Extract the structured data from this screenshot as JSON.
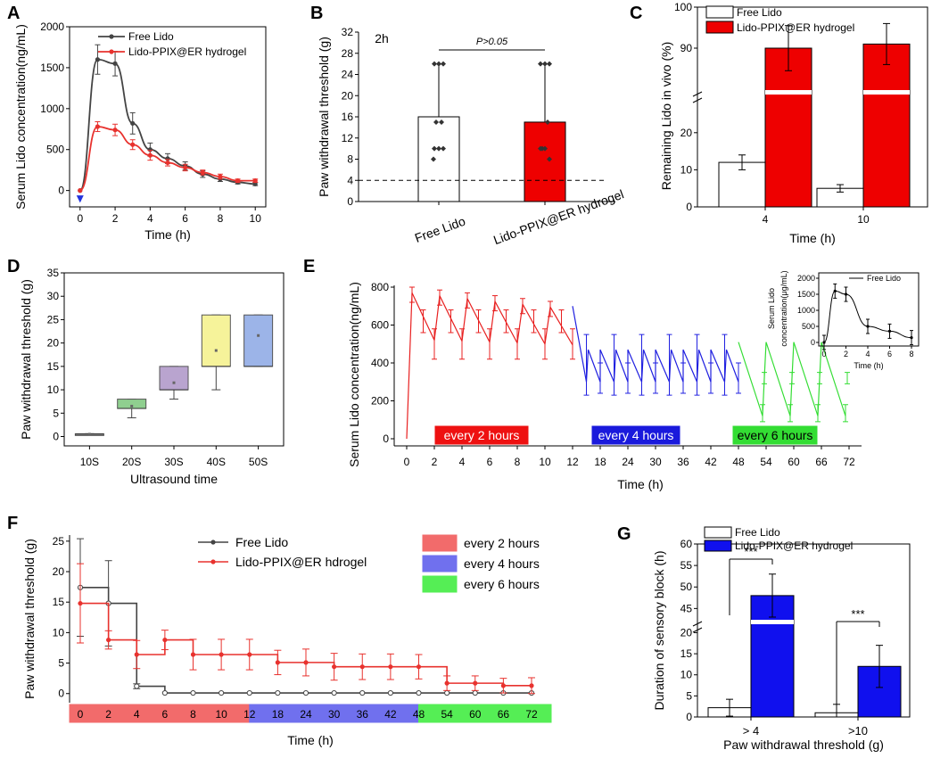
{
  "colors": {
    "red": "#e8322e",
    "blue": "#1a1adc",
    "dark": "#333333",
    "green": "#33dd33",
    "fill_red": "#ee0000",
    "fill_blue": "#1010ee"
  },
  "panels": [
    {
      "letter": "A",
      "type": "line",
      "title": "",
      "xlabel": "Time (h)",
      "ylabel": "Serum Lido concentration(ng/mL)",
      "xlim": [
        -0.6,
        10.6
      ],
      "ylim": [
        -200,
        2000
      ],
      "xticks": [
        0,
        2,
        4,
        6,
        8,
        10
      ],
      "yticks": [
        0,
        500,
        1000,
        1500,
        2000
      ],
      "series": [
        {
          "name": "Free Lido",
          "x": [
            0,
            1,
            2,
            3,
            4,
            5,
            6,
            7,
            8,
            9,
            10
          ],
          "y": [
            0,
            1600,
            1550,
            820,
            500,
            390,
            300,
            200,
            140,
            100,
            80
          ],
          "err": [
            0,
            180,
            150,
            130,
            80,
            60,
            50,
            40,
            30,
            20,
            20
          ],
          "color": "#444444"
        },
        {
          "name": "Lido-PPIX@ER hydrogel",
          "x": [
            0,
            1,
            2,
            3,
            4,
            5,
            6,
            7,
            8,
            9,
            10
          ],
          "y": [
            0,
            780,
            740,
            560,
            430,
            340,
            280,
            220,
            170,
            120,
            120
          ],
          "err": [
            0,
            60,
            70,
            60,
            60,
            40,
            40,
            30,
            30,
            20,
            20
          ],
          "color": "#e8322e"
        }
      ]
    },
    {
      "letter": "B",
      "type": "bar",
      "annotation": "2h",
      "significance": "P>0.05",
      "ylabel": "Paw withdrawal threshold (g)",
      "ylim": [
        0,
        32
      ],
      "yticks": [
        0,
        4,
        8,
        12,
        16,
        20,
        24,
        28,
        32
      ],
      "categories": [
        "Free Lido",
        "Lido-PPIX@ER hydrogel"
      ],
      "values": [
        16,
        15
      ],
      "err_high": [
        26,
        26
      ],
      "threshold": 4,
      "points": [
        [
          26,
          26,
          26,
          15,
          15,
          10,
          10,
          10,
          8
        ],
        [
          26,
          26,
          26,
          15,
          10,
          10,
          10,
          8
        ]
      ]
    },
    {
      "letter": "C",
      "type": "bar",
      "ylabel": "Remaining Lido in vivo (%)",
      "xlabel": "Time (h)",
      "categories": [
        "4",
        "10"
      ],
      "series": [
        {
          "name": "Free Lido",
          "values": [
            12,
            5
          ],
          "err": [
            2,
            1
          ]
        },
        {
          "name": "Lido-PPIX@ER hydrogel",
          "values": [
            90,
            91
          ],
          "err": [
            5.5,
            5
          ]
        }
      ],
      "yticks": [
        "0",
        "10",
        "20",
        "90",
        "100"
      ],
      "axis_break": [
        25,
        80
      ]
    },
    {
      "letter": "D",
      "type": "box",
      "xlabel": "Ultrasound time",
      "ylabel": "Paw withdrawal threshold (g)",
      "ylim": [
        -2,
        35
      ],
      "yticks": [
        0,
        5,
        10,
        15,
        20,
        25,
        30,
        35
      ],
      "categories": [
        "10S",
        "20S",
        "30S",
        "40S",
        "50S"
      ],
      "boxes": [
        {
          "q1": 0.4,
          "q3": 0.6,
          "median": 0.5,
          "min": 0.4,
          "max": 0.6,
          "mean": 0.5,
          "color": "#aaaaaa"
        },
        {
          "q1": 6,
          "q3": 8,
          "median": 6,
          "min": 4,
          "max": 8,
          "mean": 6.5,
          "color": "#8fcf8f"
        },
        {
          "q1": 10,
          "q3": 15,
          "median": 10,
          "min": 8,
          "max": 15,
          "mean": 11.5,
          "color": "#b9a4cf"
        },
        {
          "q1": 15,
          "q3": 26,
          "median": 15,
          "min": 10,
          "max": 26,
          "mean": 18.4,
          "color": "#f6f39a"
        },
        {
          "q1": 15,
          "q3": 26,
          "median": 15,
          "min": 15,
          "max": 26,
          "mean": 21.6,
          "color": "#9cb4e8"
        }
      ]
    },
    {
      "letter": "E",
      "type": "line",
      "xlabel": "Time (h)",
      "ylabel": "Serum Lido concentration(ng/mL)",
      "ylim": [
        0,
        800
      ],
      "yticks": [
        0,
        200,
        400,
        600,
        800
      ],
      "xticks": [
        "0",
        "2",
        "4",
        "6",
        "8",
        "10",
        "12",
        "18",
        "24",
        "30",
        "36",
        "42",
        "48",
        "54",
        "60",
        "66",
        "72"
      ],
      "legend_boxes": [
        "every 2 hours",
        "every 4 hours",
        "every 6 hours"
      ],
      "inset": {
        "legend": "Free Lido",
        "xlabel": "Time (h)",
        "ylabel": "Serum Lido concentration(μg/mL)",
        "xticks": [
          0,
          2,
          4,
          6,
          8
        ],
        "yticks": [
          0,
          500,
          1000,
          1500,
          2000
        ],
        "x": [
          0,
          1,
          2,
          4,
          6,
          8
        ],
        "y": [
          0,
          1600,
          1500,
          500,
          350,
          150
        ]
      }
    },
    {
      "letter": "F",
      "type": "step",
      "xlabel": "Time (h)",
      "ylabel": "Paw withdrawal threshold (g)",
      "ylim": [
        -1.5,
        26
      ],
      "yticks": [
        0,
        5,
        10,
        15,
        20,
        25
      ],
      "xticks": [
        "0",
        "2",
        "4",
        "6",
        "8",
        "10",
        "12",
        "18",
        "24",
        "30",
        "36",
        "42",
        "48",
        "54",
        "60",
        "66",
        "72"
      ],
      "series": [
        {
          "name": "Free Lido",
          "y": [
            17.4,
            14.8,
            1.2,
            0.1,
            0.1,
            0.1,
            0.1,
            0.1,
            0.1,
            0.1,
            0.1,
            0.1,
            0.1,
            0.1,
            0.1,
            0.1,
            0.1
          ],
          "err": [
            8,
            7,
            0.4,
            0,
            0,
            0,
            0,
            0,
            0,
            0,
            0,
            0,
            0,
            0,
            0,
            0,
            0
          ]
        },
        {
          "name": "Lido-PPIX@ER hdrogel",
          "y": [
            14.8,
            8.8,
            6.4,
            8.8,
            6.4,
            6.4,
            6.4,
            5.1,
            5.1,
            4.4,
            4.4,
            4.4,
            4.4,
            1.7,
            1.7,
            1.3,
            1.3
          ],
          "err": [
            6.5,
            1.5,
            2.3,
            1.6,
            2.5,
            2.5,
            2.5,
            2.0,
            2.2,
            2.2,
            2.1,
            2.1,
            2.0,
            1.2,
            1.2,
            1.2,
            1.3
          ]
        }
      ],
      "legend_boxes": [
        "every 2 hours",
        "every 4 hours",
        "every 6 hours"
      ]
    },
    {
      "letter": "G",
      "type": "bar",
      "xlabel": "Paw withdrawal threshold (g)",
      "ylabel": "Duration of sensory block (h)",
      "categories": [
        "> 4",
        ">10"
      ],
      "series": [
        {
          "name": "Free Lido",
          "values": [
            2.2,
            1.0
          ],
          "err": [
            2,
            2
          ]
        },
        {
          "name": "Lido-PPIX@ER hydrogel",
          "values": [
            48,
            12
          ],
          "err": [
            5,
            5
          ]
        }
      ],
      "yticks": [
        "0",
        "5",
        "10",
        "15",
        "20",
        "45",
        "50",
        "55",
        "60"
      ],
      "significance": [
        "***",
        "***"
      ]
    }
  ]
}
